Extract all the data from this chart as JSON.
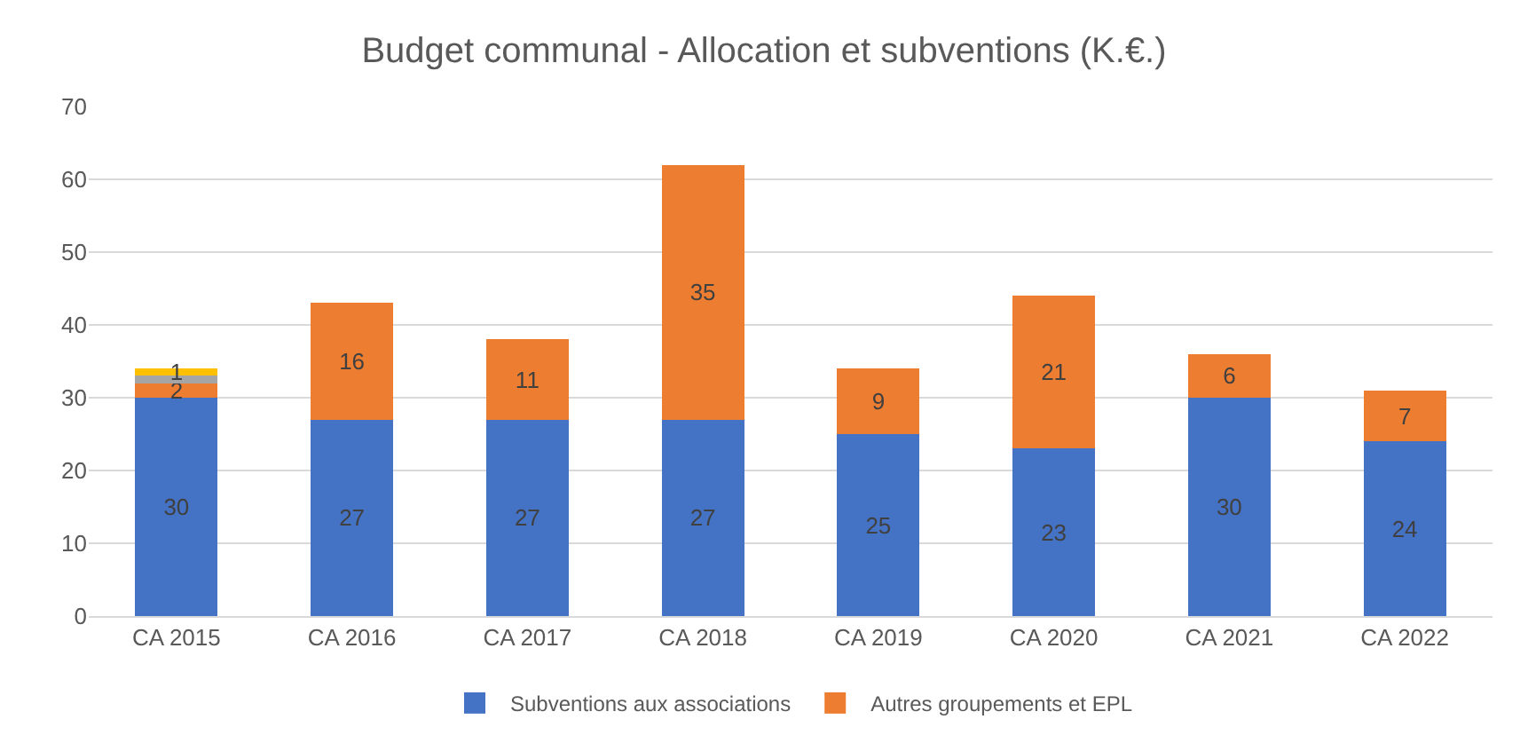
{
  "chart_data": {
    "type": "bar",
    "title": "Budget communal - Allocation et subventions (K.€.)",
    "categories": [
      "CA 2015",
      "CA 2016",
      "CA 2017",
      "CA 2018",
      "CA 2019",
      "CA 2020",
      "CA 2021",
      "CA 2022"
    ],
    "stacked": true,
    "series": [
      {
        "name": "Subventions aux associations",
        "color": "#4472c4",
        "values": [
          30,
          27,
          27,
          27,
          25,
          23,
          30,
          24
        ],
        "value_labels": [
          "30",
          "27",
          "27",
          "27",
          "25",
          "23",
          "30",
          "24"
        ]
      },
      {
        "name": "Autres groupements et EPL",
        "color": "#ed7d31",
        "values": [
          2,
          16,
          11,
          35,
          9,
          21,
          6,
          7
        ],
        "value_labels": [
          "2",
          "16",
          "11",
          "35",
          "9",
          "21",
          "6",
          "7"
        ]
      },
      {
        "color": "#a5a5a5",
        "values": [
          1,
          null,
          null,
          null,
          null,
          null,
          null,
          null
        ],
        "value_labels": [
          null,
          null,
          null,
          null,
          null,
          null,
          null,
          null
        ]
      },
      {
        "color": "#ffc000",
        "values": [
          1,
          null,
          null,
          null,
          null,
          null,
          null,
          null
        ],
        "value_labels": [
          "1",
          null,
          null,
          null,
          null,
          null,
          null,
          null
        ]
      }
    ],
    "ylim": [
      0,
      70
    ],
    "yticks": [
      0,
      10,
      20,
      30,
      40,
      50,
      60,
      70
    ],
    "grid": "y",
    "legend": "bottom"
  }
}
